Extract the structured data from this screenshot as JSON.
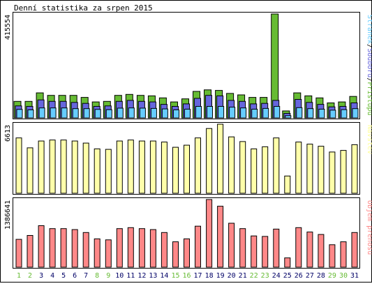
{
  "chart_data": {
    "type": "bar",
    "title": "Denní statistika za srpen 2015",
    "categories": [
      "1",
      "2",
      "3",
      "4",
      "5",
      "6",
      "7",
      "8",
      "9",
      "10",
      "11",
      "12",
      "13",
      "14",
      "15",
      "16",
      "17",
      "18",
      "19",
      "20",
      "21",
      "22",
      "23",
      "24",
      "25",
      "26",
      "27",
      "28",
      "29",
      "30",
      "31"
    ],
    "weekend_days": [
      "1",
      "2",
      "8",
      "9",
      "15",
      "16",
      "22",
      "23",
      "29",
      "30"
    ],
    "panels": [
      {
        "id": "hits",
        "ymax_label": "415554",
        "ymax": 415554,
        "legend": [
          {
            "name": "Přístupů",
            "color": "#66bb33"
          },
          {
            "name": "Souborů",
            "color": "#6666dd"
          },
          {
            "name": "Stránek",
            "color": "#66ccff"
          }
        ],
        "series": [
          {
            "name": "Přístupů",
            "color": "#66bb33",
            "values": [
              66000,
              66000,
              100000,
              90000,
              90000,
              90000,
              82000,
              64000,
              66000,
              90000,
              94000,
              90000,
              88000,
              80000,
              64000,
              76000,
              106000,
              112000,
              110000,
              98000,
              92000,
              82000,
              82000,
              415554,
              28000,
              100000,
              88000,
              80000,
              60000,
              64000,
              86000
            ]
          },
          {
            "name": "Souborů",
            "color": "#6666dd",
            "values": [
              48000,
              46000,
              72000,
              66000,
              66000,
              62000,
              58000,
              46000,
              48000,
              66000,
              70000,
              66000,
              64000,
              54000,
              46000,
              56000,
              78000,
              90000,
              88000,
              70000,
              66000,
              56000,
              58000,
              70000,
              18000,
              74000,
              62000,
              54000,
              44000,
              46000,
              60000
            ]
          },
          {
            "name": "Stránek",
            "color": "#66ccff",
            "values": [
              34000,
              32000,
              40000,
              40000,
              40000,
              37000,
              37000,
              34000,
              33000,
              39000,
              40000,
              39000,
              38000,
              36000,
              32000,
              35000,
              46000,
              46000,
              46000,
              43000,
              40000,
              35000,
              38000,
              46000,
              9000,
              41000,
              37000,
              35000,
              31000,
              33000,
              37000
            ]
          }
        ]
      },
      {
        "id": "visits",
        "ymax_label": "6613",
        "ymax": 6613,
        "legend": [
          {
            "name": "Návštěv",
            "color": "#ffff99"
          }
        ],
        "series": [
          {
            "name": "Návštěv",
            "color": "#ffffaa",
            "values": [
              5300,
              4350,
              5000,
              5100,
              5100,
              5000,
              4800,
              4250,
              4200,
              5000,
              5100,
              5000,
              5000,
              4900,
              4400,
              4600,
              5300,
              6200,
              6613,
              5400,
              4950,
              4250,
              4450,
              5300,
              1650,
              4900,
              4700,
              4500,
              3950,
              4100,
              4650
            ]
          }
        ]
      },
      {
        "id": "traffic",
        "ymax_label": "1386641",
        "ymax": 1386641,
        "legend": [
          {
            "name": "Objem přenosu",
            "color": "#ff8888"
          }
        ],
        "series": [
          {
            "name": "Objem přenosu",
            "color": "#ff8888",
            "values": [
              570000,
              650000,
              850000,
              790000,
              790000,
              770000,
              710000,
              580000,
              560000,
              790000,
              810000,
              790000,
              770000,
              710000,
              520000,
              580000,
              840000,
              1386641,
              1250000,
              900000,
              790000,
              640000,
              630000,
              780000,
              190000,
              810000,
              720000,
              670000,
              460000,
              520000,
              710000
            ]
          }
        ]
      }
    ]
  },
  "colors": {
    "weekday_label": "#000066",
    "weekend_label": "#66bb33",
    "panel_bg": "#ffffff",
    "bar_stroke": "#000000"
  }
}
